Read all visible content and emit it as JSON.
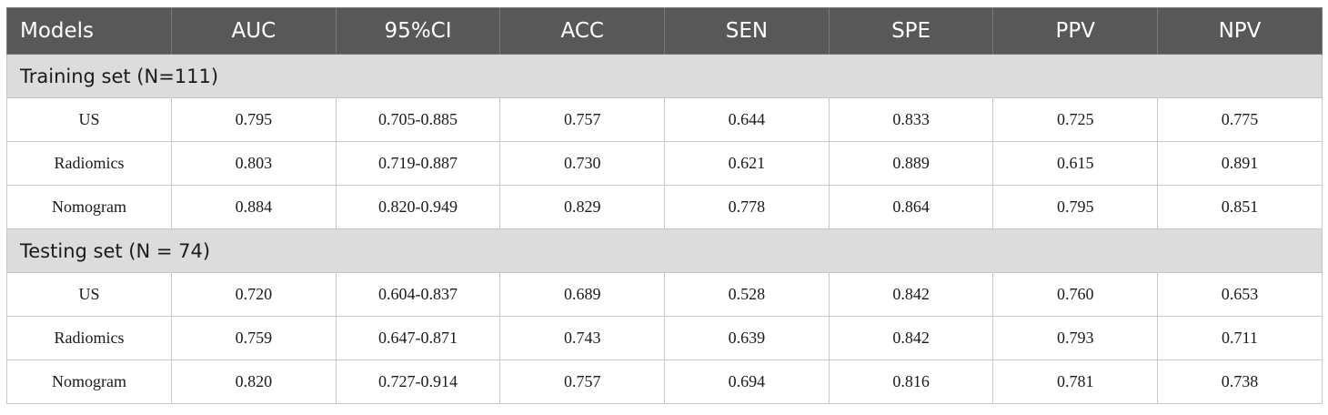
{
  "table": {
    "headers": [
      "Models",
      "AUC",
      "95%CI",
      "ACC",
      "SEN",
      "SPE",
      "PPV",
      "NPV"
    ],
    "sections": [
      {
        "title": "Training set (N=111)",
        "rows": [
          [
            "US",
            "0.795",
            "0.705-0.885",
            "0.757",
            "0.644",
            "0.833",
            "0.725",
            "0.775"
          ],
          [
            "Radiomics",
            "0.803",
            "0.719-0.887",
            "0.730",
            "0.621",
            "0.889",
            "0.615",
            "0.891"
          ],
          [
            "Nomogram",
            "0.884",
            "0.820-0.949",
            "0.829",
            "0.778",
            "0.864",
            "0.795",
            "0.851"
          ]
        ]
      },
      {
        "title": "Testing set (N = 74)",
        "rows": [
          [
            "US",
            "0.720",
            "0.604-0.837",
            "0.689",
            "0.528",
            "0.842",
            "0.760",
            "0.653"
          ],
          [
            "Radiomics",
            "0.759",
            "0.647-0.871",
            "0.743",
            "0.639",
            "0.842",
            "0.793",
            "0.711"
          ],
          [
            "Nomogram",
            "0.820",
            "0.727-0.914",
            "0.757",
            "0.694",
            "0.816",
            "0.781",
            "0.738"
          ]
        ]
      }
    ]
  }
}
